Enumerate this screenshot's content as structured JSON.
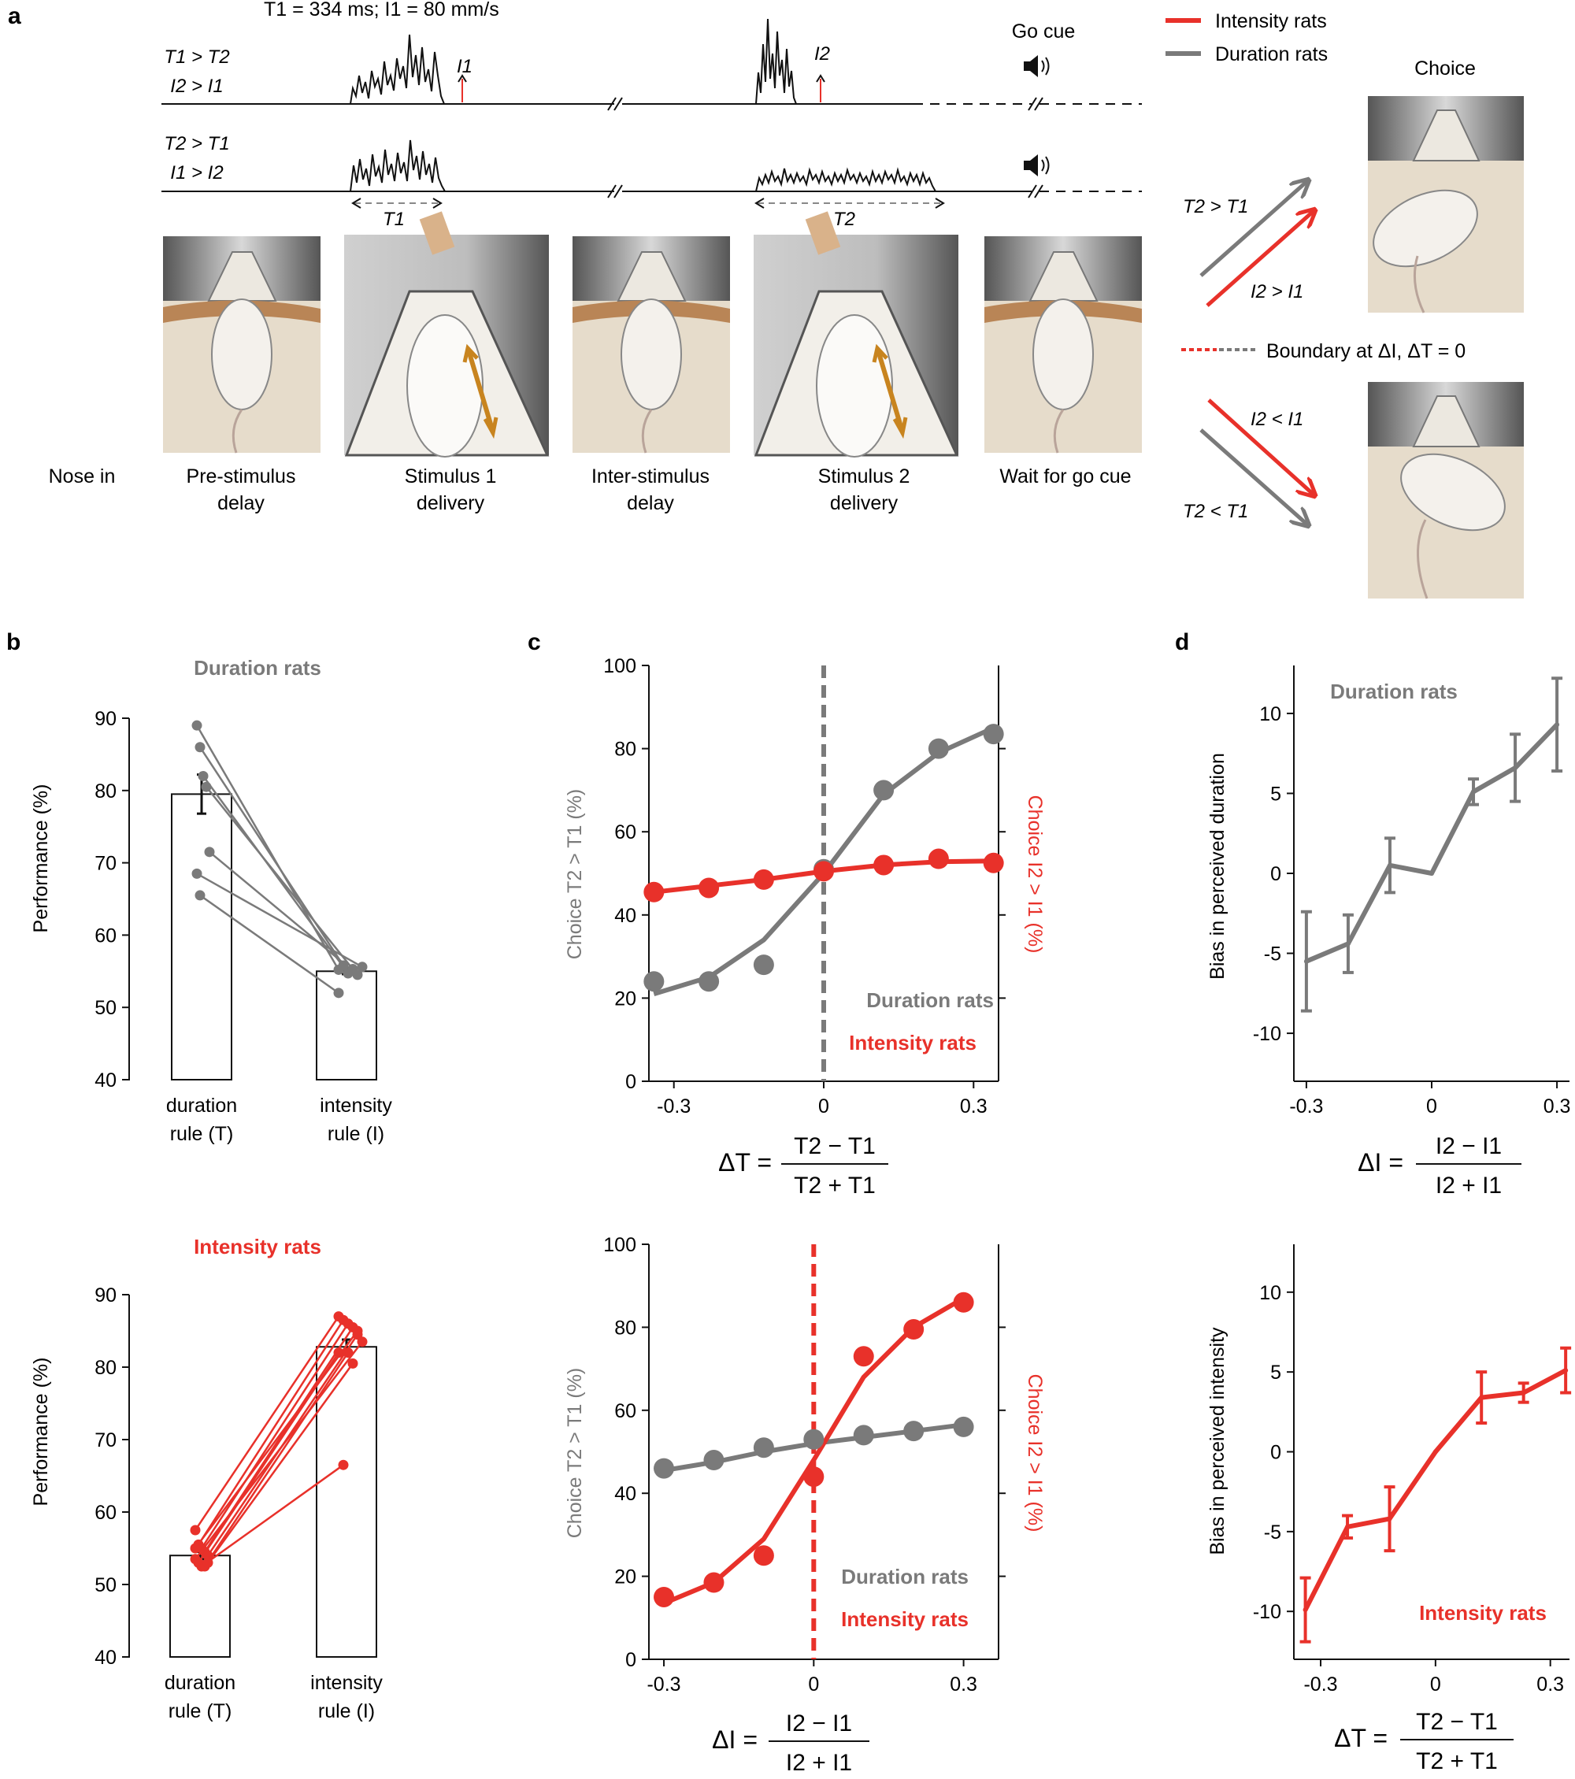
{
  "colors": {
    "intensity": "#e8312a",
    "duration": "#7a7a7a",
    "black": "#111111"
  },
  "panel_a": {
    "letter": "a",
    "top_label": "T1 = 334 ms; I1 = 80 mm/s",
    "trace1_label": [
      "T1 > T2",
      "I2 > I1"
    ],
    "trace2_label": [
      "T2 > T1",
      "I1 > I2"
    ],
    "i1_marker": "I1",
    "i2_marker": "I2",
    "go_cue": "Go cue",
    "t1_bracket": "T1",
    "t2_bracket": "T2",
    "legend": [
      {
        "label": "Intensity rats",
        "color": "#e8312a"
      },
      {
        "label": "Duration rats",
        "color": "#7a7a7a"
      }
    ],
    "choice_title": "Choice",
    "arrow_labels_up": [
      "T2 > T1",
      "I2 > I1"
    ],
    "arrow_labels_down": [
      "I2 < I1",
      "T2 < T1"
    ],
    "boundary_label": "Boundary at ΔI, ΔT = 0",
    "epochs": [
      [
        "Nose in",
        ""
      ],
      [
        "Pre-stimulus",
        "delay"
      ],
      [
        "Stimulus 1",
        "delivery"
      ],
      [
        "Inter-stimulus",
        "delay"
      ],
      [
        "Stimulus 2",
        "delivery"
      ],
      [
        "Wait for go cue",
        ""
      ]
    ]
  },
  "panel_b": {
    "letter": "b",
    "top_title": "Duration rats",
    "bottom_title": "Intensity rats",
    "ylabel_top": "Performance  (%)",
    "ylabel_bottom": "Performance (%)",
    "xcats_top": [
      [
        "duration",
        "rule (T)"
      ],
      [
        "intensity",
        "rule (I)"
      ]
    ],
    "xcats_bottom": [
      [
        "duration",
        "rule (T)"
      ],
      [
        "intensity",
        "rule (I)"
      ]
    ]
  },
  "panel_c": {
    "letter": "c",
    "ylabel_left_top": "Choice T2 > T1    (%)",
    "ylabel_left_bottom": "Choice T2 > T1 (%)",
    "ylabel_right": "Choice I2 > I1 (%)",
    "xlabel_top": [
      "ΔT =",
      "T2 − T1",
      "T2 + T1"
    ],
    "xlabel_bottom": [
      "ΔI =",
      "I2 − I1",
      "I2 + I1"
    ],
    "legend": [
      "Duration rats",
      "Intensity rats"
    ]
  },
  "panel_d": {
    "letter": "d",
    "top_title": "Duration rats",
    "bottom_title": "Intensity rats",
    "ylabel_top": "Bias in perceived duration",
    "ylabel_bottom": "Bias in perceived intensity",
    "xlabel_top": [
      "ΔI =",
      "I2 − I1",
      "I2 + I1"
    ],
    "xlabel_bottom": [
      "ΔT =",
      "T2 − T1",
      "T2 + T1"
    ]
  },
  "chart_data": [
    {
      "id": "b-top",
      "type": "bar",
      "title": "Duration rats",
      "categories": [
        "duration rule (T)",
        "intensity rule (I)"
      ],
      "ylabel": "Performance  (%)",
      "ylim": [
        40,
        90
      ],
      "yticks": [
        40,
        50,
        60,
        70,
        80,
        90
      ],
      "values": [
        79.5,
        55.0
      ],
      "errors": [
        2.7,
        0.4
      ],
      "individual": [
        [
          89.0,
          55.2
        ],
        [
          86.0,
          55.8
        ],
        [
          82.0,
          54.7
        ],
        [
          80.5,
          55.3
        ],
        [
          71.5,
          54.5
        ],
        [
          68.5,
          55.6
        ],
        [
          65.5,
          52.0
        ]
      ]
    },
    {
      "id": "b-bottom",
      "type": "bar",
      "title": "Intensity rats",
      "categories": [
        "duration rule (T)",
        "intensity rule (I)"
      ],
      "ylabel": "Performance (%)",
      "ylim": [
        40,
        90
      ],
      "yticks": [
        40,
        50,
        60,
        70,
        80,
        90
      ],
      "values": [
        54.0,
        82.8
      ],
      "errors": [
        0.5,
        1.0
      ],
      "individual": [
        [
          57.5,
          87.0
        ],
        [
          55.5,
          86.5
        ],
        [
          55.0,
          86.0
        ],
        [
          54.5,
          85.5
        ],
        [
          54.0,
          84.5
        ],
        [
          53.5,
          83.5
        ],
        [
          53.0,
          82.0
        ],
        [
          52.5,
          66.5
        ],
        [
          52.5,
          82.0
        ],
        [
          53.0,
          80.5
        ],
        [
          55.0,
          85.0
        ]
      ]
    },
    {
      "id": "c-top",
      "type": "line",
      "xlim": [
        -0.35,
        0.35
      ],
      "ylim": [
        0,
        100
      ],
      "xticks": [
        -0.3,
        0,
        0.3
      ],
      "yticks": [
        0,
        20,
        40,
        60,
        80,
        100
      ],
      "series": [
        {
          "name": "Duration rats",
          "color": "#7a7a7a",
          "x": [
            -0.34,
            -0.23,
            -0.12,
            0,
            0.12,
            0.23,
            0.34
          ],
          "y": [
            24,
            24,
            28,
            51,
            70,
            80,
            83.5
          ],
          "fit": [
            21,
            25,
            34,
            50,
            69,
            79,
            85
          ]
        },
        {
          "name": "Intensity rats",
          "color": "#e8312a",
          "x": [
            -0.34,
            -0.23,
            -0.12,
            0,
            0.12,
            0.23,
            0.34
          ],
          "y": [
            45.5,
            46.5,
            48.5,
            50.5,
            52,
            53.5,
            52.5
          ],
          "fit": [
            45.5,
            47,
            48.5,
            50.5,
            52,
            52.8,
            53
          ]
        }
      ],
      "boundary_x": 0
    },
    {
      "id": "c-bottom",
      "type": "line",
      "xlim": [
        -0.33,
        0.37
      ],
      "ylim": [
        0,
        100
      ],
      "xticks": [
        -0.3,
        0,
        0.3
      ],
      "yticks": [
        0,
        20,
        40,
        60,
        80,
        100
      ],
      "series": [
        {
          "name": "Duration rats",
          "color": "#7a7a7a",
          "x": [
            -0.3,
            -0.2,
            -0.1,
            0,
            0.1,
            0.2,
            0.3
          ],
          "y": [
            46,
            48,
            51,
            53,
            54,
            55,
            56
          ],
          "fit": [
            45.5,
            47.5,
            50,
            52,
            53.5,
            55,
            56.5
          ]
        },
        {
          "name": "Intensity rats",
          "color": "#e8312a",
          "x": [
            -0.3,
            -0.2,
            -0.1,
            0,
            0.1,
            0.2,
            0.3
          ],
          "y": [
            15,
            18.5,
            25,
            44,
            73,
            79.5,
            86
          ],
          "fit": [
            13.5,
            18.5,
            29,
            48,
            68,
            80,
            87
          ]
        }
      ],
      "boundary_x": 0
    },
    {
      "id": "d-top",
      "type": "line",
      "title": "Duration rats",
      "xlim": [
        -0.33,
        0.33
      ],
      "ylim": [
        -13,
        13
      ],
      "xticks": [
        -0.3,
        0,
        0.3
      ],
      "yticks": [
        -10,
        -5,
        0,
        5,
        10
      ],
      "series": [
        {
          "name": "Duration rats",
          "color": "#7a7a7a",
          "x": [
            -0.3,
            -0.2,
            -0.1,
            0,
            0.1,
            0.2,
            0.3
          ],
          "y": [
            -5.5,
            -4.4,
            0.5,
            0,
            5.1,
            6.6,
            9.3
          ],
          "err": [
            3.1,
            1.8,
            1.7,
            0,
            0.8,
            2.1,
            2.9
          ]
        }
      ]
    },
    {
      "id": "d-bottom",
      "type": "line",
      "title": "Intensity rats",
      "xlim": [
        -0.37,
        0.35
      ],
      "ylim": [
        -13,
        13
      ],
      "xticks": [
        -0.3,
        0,
        0.3
      ],
      "yticks": [
        -10,
        -5,
        0,
        5,
        10
      ],
      "series": [
        {
          "name": "Intensity rats",
          "color": "#e8312a",
          "x": [
            -0.34,
            -0.23,
            -0.12,
            0,
            0.12,
            0.23,
            0.34
          ],
          "y": [
            -9.9,
            -4.7,
            -4.2,
            0,
            3.4,
            3.7,
            5.1
          ],
          "err": [
            2.0,
            0.7,
            2.0,
            0,
            1.6,
            0.6,
            1.4
          ]
        }
      ]
    }
  ]
}
